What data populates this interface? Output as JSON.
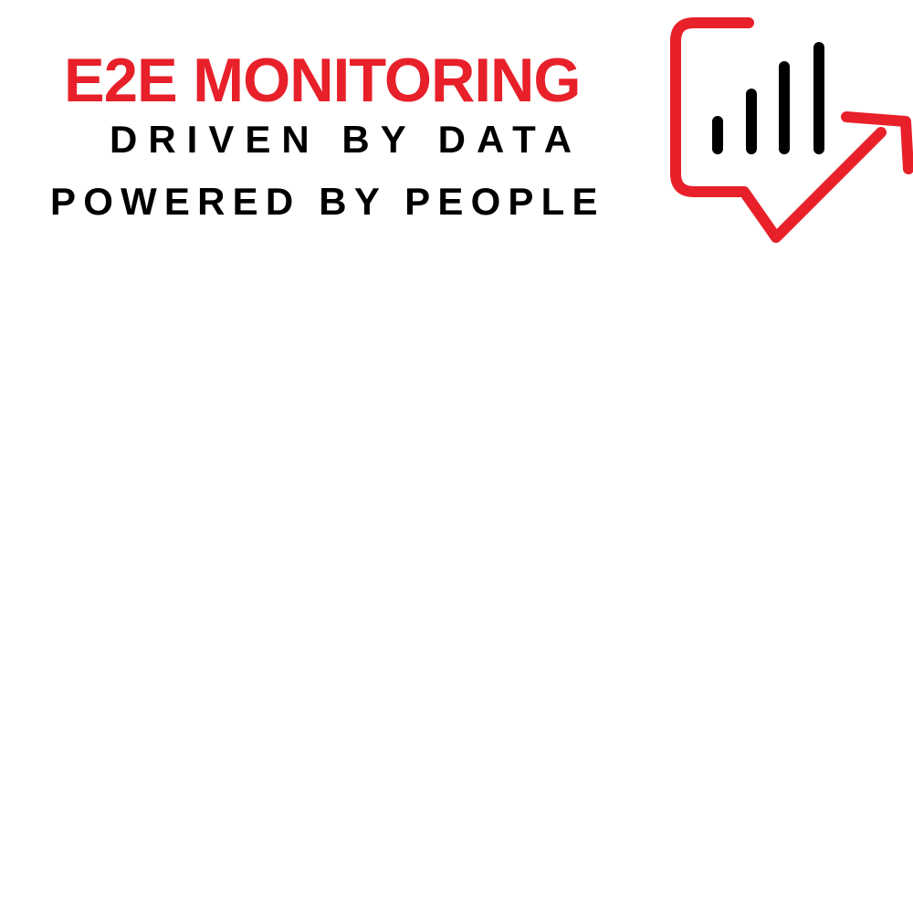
{
  "brand": {
    "title": "E2E MONITORING",
    "tagline_line1": "DRIVEN BY DATA",
    "tagline_line2": "POWERED BY PEOPLE"
  },
  "colors": {
    "accent": "#e8202a",
    "text": "#000000",
    "background": "#ffffff"
  },
  "logo": {
    "icon": "chat-bubble-bar-chart-arrow-icon"
  }
}
